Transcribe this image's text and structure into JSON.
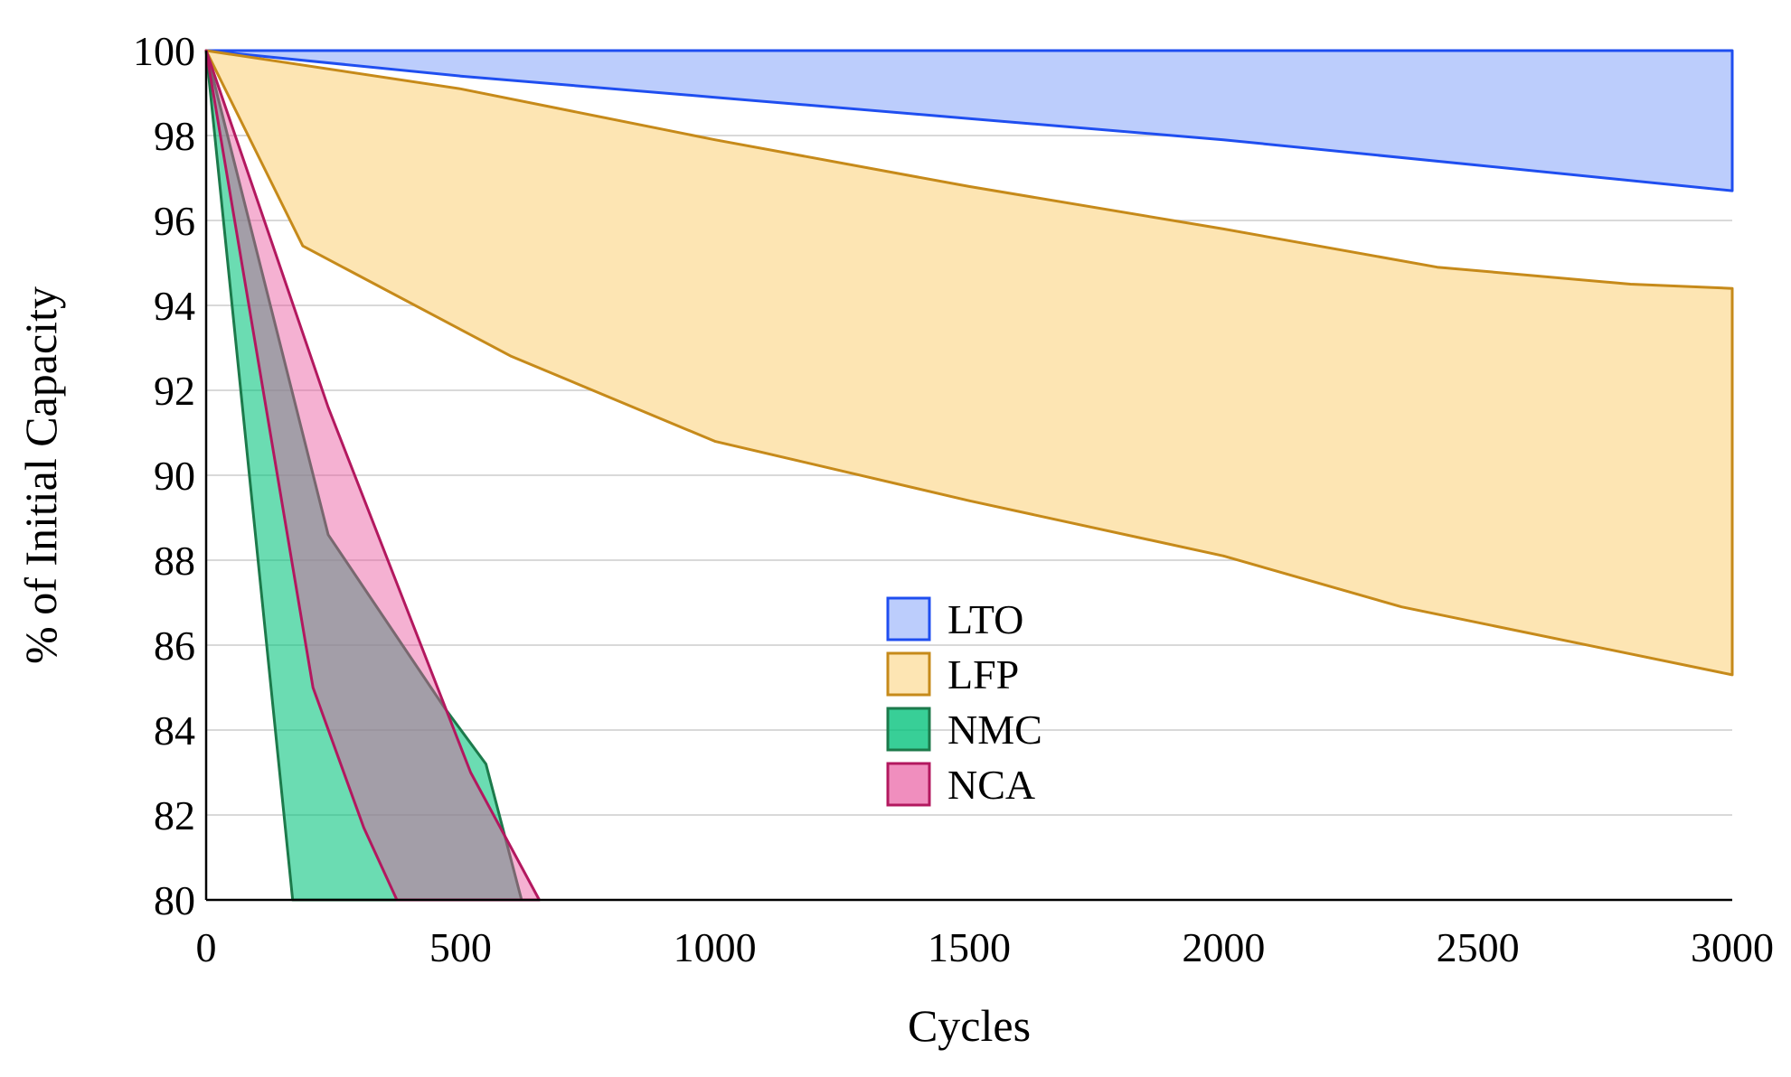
{
  "chart_data": {
    "type": "area",
    "subtype": "range-band",
    "title": "",
    "xlabel": "Cycles",
    "ylabel": "% of Initial Capacity",
    "xlim": [
      0,
      3000
    ],
    "ylim": [
      80,
      100
    ],
    "xticks": [
      0,
      500,
      1000,
      1500,
      2000,
      2500,
      3000
    ],
    "yticks": [
      80,
      82,
      84,
      86,
      88,
      90,
      92,
      94,
      96,
      98,
      100
    ],
    "xtick_labels": [
      "0",
      "500",
      "1000",
      "1500",
      "2000",
      "2500",
      "3000"
    ],
    "ytick_labels": [
      "80",
      "82",
      "84",
      "86",
      "88",
      "90",
      "92",
      "94",
      "96",
      "98",
      "100"
    ],
    "grid": "horizontal",
    "legend_position": "center-right",
    "series": [
      {
        "name": "LTO",
        "fill": "#bccdfc",
        "stroke": "#1f4ef0",
        "fill_opacity": 1,
        "upper": [
          [
            0,
            100
          ],
          [
            3000,
            100
          ]
        ],
        "lower": [
          [
            0,
            100
          ],
          [
            500,
            99.4
          ],
          [
            1000,
            98.9
          ],
          [
            1500,
            98.4
          ],
          [
            2000,
            97.9
          ],
          [
            2500,
            97.3
          ],
          [
            3000,
            96.7
          ]
        ]
      },
      {
        "name": "LFP",
        "fill": "#fde5b3",
        "stroke": "#c68a1a",
        "fill_opacity": 1,
        "upper": [
          [
            0,
            100
          ],
          [
            500,
            99.1
          ],
          [
            1000,
            97.9
          ],
          [
            1500,
            96.8
          ],
          [
            2000,
            95.8
          ],
          [
            2420,
            94.9
          ],
          [
            2800,
            94.5
          ],
          [
            3000,
            94.4
          ]
        ],
        "lower": [
          [
            0,
            100
          ],
          [
            190,
            95.4
          ],
          [
            600,
            92.8
          ],
          [
            1000,
            90.8
          ],
          [
            1500,
            89.4
          ],
          [
            2000,
            88.1
          ],
          [
            2350,
            86.9
          ],
          [
            3000,
            85.3
          ]
        ]
      },
      {
        "name": "NMC",
        "fill": "#00c27a",
        "stroke": "#1c7a4b",
        "fill_opacity": 0.58,
        "upper": [
          [
            0,
            100
          ],
          [
            240,
            88.6
          ],
          [
            470,
            84.5
          ],
          [
            550,
            83.2
          ],
          [
            620,
            80
          ]
        ],
        "lower": [
          [
            0,
            100
          ],
          [
            170,
            80
          ]
        ]
      },
      {
        "name": "NCA",
        "fill": "#e8529b",
        "stroke": "#b3185f",
        "fill_opacity": 0.45,
        "upper": [
          [
            0,
            100
          ],
          [
            240,
            91.6
          ],
          [
            520,
            83
          ],
          [
            655,
            80
          ]
        ],
        "lower": [
          [
            0,
            100
          ],
          [
            210,
            85
          ],
          [
            310,
            81.7
          ],
          [
            375,
            80
          ]
        ]
      }
    ]
  }
}
